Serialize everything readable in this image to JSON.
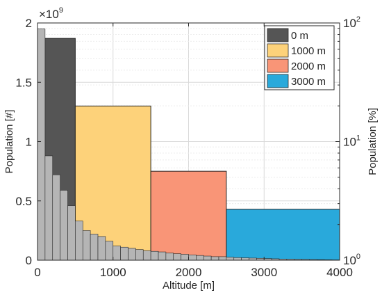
{
  "chart_data": {
    "type": "bar",
    "xlabel": "Altitude [m]",
    "ylabel": "Population [#]",
    "y2label": "Population [%]",
    "y_exponent_label": {
      "base": "×10",
      "exp": "9"
    },
    "xlim": [
      0,
      4000
    ],
    "ylim": [
      0,
      2
    ],
    "y2lim_log": [
      1,
      100
    ],
    "x_ticks": [
      {
        "value": 0,
        "label": "0"
      },
      {
        "value": 1000,
        "label": "1000"
      },
      {
        "value": 2000,
        "label": "2000"
      },
      {
        "value": 3000,
        "label": "3000"
      },
      {
        "value": 4000,
        "label": "4000"
      }
    ],
    "y_ticks": [
      {
        "value": 0,
        "label": "0"
      },
      {
        "value": 0.5,
        "label": "0.5"
      },
      {
        "value": 1,
        "label": "1"
      },
      {
        "value": 1.5,
        "label": "1.5"
      },
      {
        "value": 2,
        "label": "2"
      }
    ],
    "y2_ticks": [
      {
        "value": 1,
        "base": "10",
        "exp": "0"
      },
      {
        "value": 10,
        "base": "10",
        "exp": "1"
      },
      {
        "value": 100,
        "base": "10",
        "exp": "2"
      }
    ],
    "grid": true,
    "legend": {
      "placement": "top-right",
      "entries": [
        {
          "label": "0 m",
          "color": "#555555"
        },
        {
          "label": "1000 m",
          "color": "#FDD27A"
        },
        {
          "label": "2000 m",
          "color": "#F99577"
        },
        {
          "label": "3000 m",
          "color": "#29A9DB"
        }
      ]
    },
    "band_series": [
      {
        "name": "0 m",
        "x0": 0,
        "x1": 500,
        "value": 1.87,
        "color": "#555555"
      },
      {
        "name": "1000 m",
        "x0": 500,
        "x1": 1500,
        "value": 1.3,
        "color": "#FDD27A"
      },
      {
        "name": "2000 m",
        "x0": 1500,
        "x1": 2500,
        "value": 0.75,
        "color": "#F99577"
      },
      {
        "name": "3000 m",
        "x0": 2500,
        "x1": 4000,
        "value": 0.43,
        "color": "#29A9DB"
      }
    ],
    "histogram": {
      "bin_width": 100,
      "color": "#B5B5B5",
      "values": [
        1.95,
        0.88,
        0.72,
        0.59,
        0.46,
        0.33,
        0.25,
        0.22,
        0.2,
        0.16,
        0.12,
        0.11,
        0.1,
        0.09,
        0.08,
        0.075,
        0.07,
        0.06,
        0.055,
        0.05,
        0.045,
        0.04,
        0.035,
        0.03,
        0.03,
        0.025,
        0.022,
        0.02,
        0.018,
        0.016,
        0.014,
        0.012,
        0.01,
        0.009,
        0.008,
        0.007,
        0.006,
        0.005,
        0.004,
        0.003
      ]
    }
  }
}
